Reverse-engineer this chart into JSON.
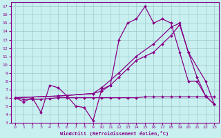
{
  "xlabel": "Windchill (Refroidissement éolien,°C)",
  "bg_color": "#c8f0f0",
  "grid_color": "#a0c8c8",
  "line_color": "#880088",
  "xlim": [
    -0.5,
    23.5
  ],
  "ylim": [
    3,
    17.5
  ],
  "xticks": [
    0,
    1,
    2,
    3,
    4,
    5,
    6,
    7,
    8,
    9,
    10,
    11,
    12,
    13,
    14,
    15,
    16,
    17,
    18,
    19,
    20,
    21,
    22,
    23
  ],
  "yticks": [
    3,
    4,
    5,
    6,
    7,
    8,
    9,
    10,
    11,
    12,
    13,
    14,
    15,
    16,
    17
  ],
  "series1": [
    [
      0,
      6.0
    ],
    [
      1,
      5.5
    ],
    [
      2,
      6.0
    ],
    [
      3,
      4.2
    ],
    [
      4,
      7.5
    ],
    [
      5,
      7.2
    ],
    [
      6,
      6.2
    ],
    [
      7,
      5.0
    ],
    [
      8,
      4.8
    ],
    [
      9,
      3.2
    ],
    [
      10,
      7.0
    ],
    [
      11,
      7.5
    ],
    [
      12,
      13.0
    ],
    [
      13,
      15.0
    ],
    [
      14,
      15.5
    ],
    [
      15,
      17.0
    ],
    [
      16,
      15.0
    ],
    [
      17,
      15.5
    ],
    [
      18,
      15.0
    ],
    [
      19,
      11.5
    ],
    [
      20,
      8.0
    ],
    [
      21,
      8.0
    ],
    [
      22,
      6.2
    ],
    [
      23,
      5.2
    ]
  ],
  "series2": [
    [
      0,
      6.0
    ],
    [
      1,
      5.8
    ],
    [
      2,
      5.8
    ],
    [
      3,
      5.8
    ],
    [
      4,
      5.9
    ],
    [
      5,
      6.0
    ],
    [
      6,
      6.0
    ],
    [
      7,
      6.0
    ],
    [
      8,
      6.0
    ],
    [
      9,
      6.0
    ],
    [
      10,
      6.0
    ],
    [
      11,
      6.0
    ],
    [
      12,
      6.0
    ],
    [
      13,
      6.0
    ],
    [
      14,
      6.0
    ],
    [
      15,
      6.1
    ],
    [
      16,
      6.1
    ],
    [
      17,
      6.1
    ],
    [
      18,
      6.1
    ],
    [
      19,
      6.1
    ],
    [
      20,
      6.1
    ],
    [
      21,
      6.1
    ],
    [
      22,
      6.1
    ],
    [
      23,
      6.1
    ]
  ],
  "series3": [
    [
      0,
      6.0
    ],
    [
      5,
      6.2
    ],
    [
      9,
      6.5
    ],
    [
      10,
      6.8
    ],
    [
      11,
      7.5
    ],
    [
      12,
      8.5
    ],
    [
      13,
      9.5
    ],
    [
      14,
      10.5
    ],
    [
      15,
      11.0
    ],
    [
      16,
      11.5
    ],
    [
      17,
      12.5
    ],
    [
      18,
      13.5
    ],
    [
      19,
      14.8
    ],
    [
      20,
      11.5
    ],
    [
      21,
      8.5
    ],
    [
      22,
      6.2
    ],
    [
      23,
      5.2
    ]
  ],
  "series4": [
    [
      0,
      6.0
    ],
    [
      5,
      6.2
    ],
    [
      9,
      6.5
    ],
    [
      10,
      7.2
    ],
    [
      12,
      9.0
    ],
    [
      14,
      11.0
    ],
    [
      16,
      12.5
    ],
    [
      18,
      14.5
    ],
    [
      19,
      15.0
    ],
    [
      20,
      11.5
    ],
    [
      22,
      8.0
    ],
    [
      23,
      5.2
    ]
  ]
}
